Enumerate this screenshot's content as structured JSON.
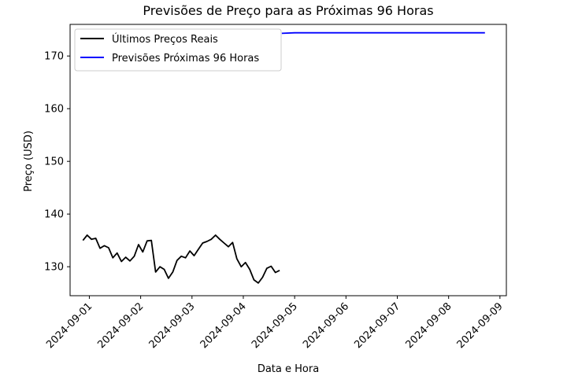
{
  "chart_data": {
    "type": "line",
    "title": "Previsões de Preço para as Próximas 96 Horas",
    "xlabel": "Data e Hora",
    "ylabel": "Preço (USD)",
    "xlim": [
      "2024-08-31T15:00",
      "2024-09-09T03:00"
    ],
    "ylim": [
      124.5,
      176.0
    ],
    "xticks": [
      "2024-09-01",
      "2024-09-02",
      "2024-09-03",
      "2024-09-04",
      "2024-09-05",
      "2024-09-06",
      "2024-09-07",
      "2024-09-08",
      "2024-09-09"
    ],
    "yticks": [
      130,
      140,
      150,
      160,
      170
    ],
    "grid": false,
    "legend_position": "top-left",
    "series": [
      {
        "name": "Últimos Preços Reais",
        "color": "#000000",
        "x": [
          "2024-08-31T21:00",
          "2024-08-31T23:00",
          "2024-09-01T01:00",
          "2024-09-01T03:00",
          "2024-09-01T05:00",
          "2024-09-01T07:00",
          "2024-09-01T09:00",
          "2024-09-01T11:00",
          "2024-09-01T13:00",
          "2024-09-01T15:00",
          "2024-09-01T17:00",
          "2024-09-01T19:00",
          "2024-09-01T21:00",
          "2024-09-01T23:00",
          "2024-09-02T01:00",
          "2024-09-02T03:00",
          "2024-09-02T05:00",
          "2024-09-02T07:00",
          "2024-09-02T09:00",
          "2024-09-02T11:00",
          "2024-09-02T13:00",
          "2024-09-02T15:00",
          "2024-09-02T17:00",
          "2024-09-02T19:00",
          "2024-09-02T21:00",
          "2024-09-02T23:00",
          "2024-09-03T01:00",
          "2024-09-03T03:00",
          "2024-09-03T05:00",
          "2024-09-03T07:00",
          "2024-09-03T09:00",
          "2024-09-03T11:00",
          "2024-09-03T13:00",
          "2024-09-03T15:00",
          "2024-09-03T17:00",
          "2024-09-03T19:00",
          "2024-09-03T21:00",
          "2024-09-03T23:00",
          "2024-09-04T01:00",
          "2024-09-04T03:00",
          "2024-09-04T05:00",
          "2024-09-04T07:00",
          "2024-09-04T09:00",
          "2024-09-04T11:00",
          "2024-09-04T13:00",
          "2024-09-04T15:00",
          "2024-09-04T17:00"
        ],
        "values": [
          135.0,
          136.0,
          135.2,
          135.4,
          133.5,
          134.0,
          133.6,
          131.7,
          132.6,
          131.0,
          131.8,
          131.1,
          132.0,
          134.2,
          132.8,
          134.9,
          135.0,
          129.0,
          130.0,
          129.5,
          127.8,
          129.0,
          131.2,
          132.0,
          131.7,
          133.0,
          132.1,
          133.3,
          134.5,
          134.8,
          135.2,
          136.0,
          135.2,
          134.5,
          133.8,
          134.6,
          131.5,
          130.0,
          130.8,
          129.5,
          127.5,
          126.9,
          128.0,
          129.7,
          130.1,
          128.9,
          129.3
        ]
      },
      {
        "name": "Previsões Próximas 96 Horas",
        "color": "#0000ff",
        "x": [
          "2024-09-04T18:00",
          "2024-09-05T00:00",
          "2024-09-05T12:00",
          "2024-09-06T12:00",
          "2024-09-07T12:00",
          "2024-09-08T12:00",
          "2024-09-08T17:00"
        ],
        "values": [
          174.3,
          174.4,
          174.4,
          174.4,
          174.4,
          174.4,
          174.4
        ]
      }
    ]
  }
}
